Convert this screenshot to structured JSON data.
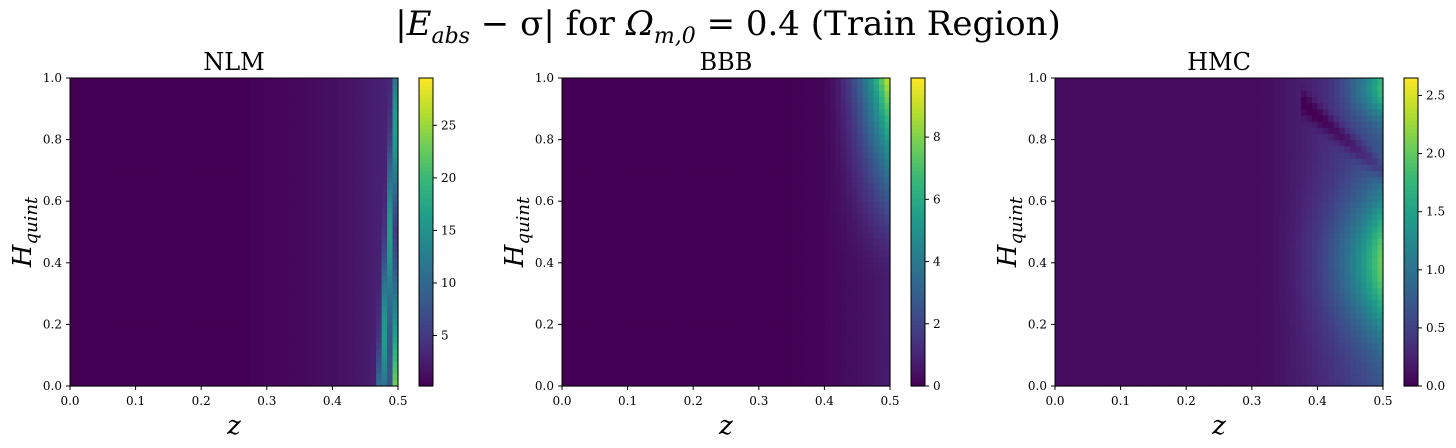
{
  "figure": {
    "title_parts": {
      "abs_open": "|",
      "e": "E",
      "e_sub": "abs",
      "minus_sigma": " − σ",
      "abs_close": "|",
      "for_text": " for ",
      "omega": "Ω",
      "omega_sub": "m,0",
      "value": " = 0.4 (Train Region)"
    }
  },
  "colormap": "viridis",
  "chart_data": [
    {
      "type": "heatmap",
      "title": "NLM",
      "xlabel": "z",
      "ylabel": "H_quint",
      "xlim": [
        0.0,
        0.5
      ],
      "ylim": [
        0.0,
        1.0
      ],
      "xticks": [
        "0.0",
        "0.1",
        "0.2",
        "0.3",
        "0.4",
        "0.5"
      ],
      "yticks": [
        "0.0",
        "0.2",
        "0.4",
        "0.6",
        "0.8",
        "1.0"
      ],
      "colorbar_range": [
        0.2,
        29.5
      ],
      "colorbar_ticks": [
        5,
        10,
        15,
        20,
        25
      ],
      "pattern": "nlm"
    },
    {
      "type": "heatmap",
      "title": "BBB",
      "xlabel": "z",
      "ylabel": "H_quint",
      "xlim": [
        0.0,
        0.5
      ],
      "ylim": [
        0.0,
        1.0
      ],
      "xticks": [
        "0.0",
        "0.1",
        "0.2",
        "0.3",
        "0.4",
        "0.5"
      ],
      "yticks": [
        "0.0",
        "0.2",
        "0.4",
        "0.6",
        "0.8",
        "1.0"
      ],
      "colorbar_range": [
        0,
        9.9
      ],
      "colorbar_ticks": [
        0,
        2,
        4,
        6,
        8
      ],
      "pattern": "bbb"
    },
    {
      "type": "heatmap",
      "title": "HMC",
      "xlabel": "z",
      "ylabel": "H_quint",
      "xlim": [
        0.0,
        0.5
      ],
      "ylim": [
        0.0,
        1.0
      ],
      "xticks": [
        "0.0",
        "0.1",
        "0.2",
        "0.3",
        "0.4",
        "0.5"
      ],
      "yticks": [
        "0.0",
        "0.2",
        "0.4",
        "0.6",
        "0.8",
        "1.0"
      ],
      "colorbar_range": [
        0.0,
        2.65
      ],
      "colorbar_ticks": [
        "0.0",
        "0.5",
        "1.0",
        "1.5",
        "2.0",
        "2.5"
      ],
      "pattern": "hmc"
    }
  ]
}
